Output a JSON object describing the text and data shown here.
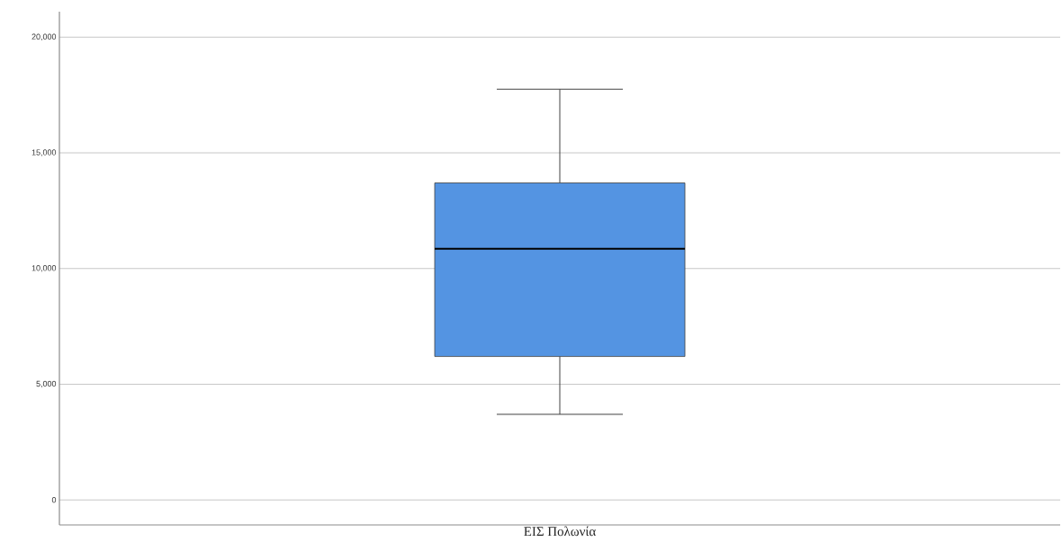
{
  "chart_data": {
    "type": "box",
    "categories": [
      "ΕΙΣ Πολωνία"
    ],
    "boxes": [
      {
        "low": 3700,
        "q1": 6200,
        "median": 10850,
        "q3": 13700,
        "high": 17750
      }
    ],
    "color": "#5494e2",
    "ylim": [
      -1080,
      21100
    ],
    "yticks": [
      0,
      {
        "value": 5000,
        "label": "5,000"
      },
      {
        "value": 10000,
        "label": "10,000"
      },
      {
        "value": 15000,
        "label": "15,000"
      },
      {
        "value": 20000,
        "label": "20,000"
      }
    ],
    "grid": "y"
  }
}
